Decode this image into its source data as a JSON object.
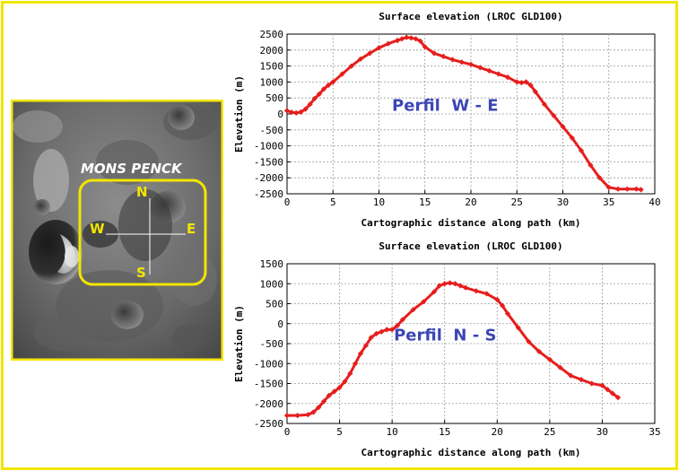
{
  "photo": {
    "feature_name": "MONS PENCK",
    "compass": {
      "north": "N",
      "south": "S",
      "west": "W",
      "east": "E"
    },
    "highlight_color": "#f2e600"
  },
  "colors": {
    "frame": "#f2e600",
    "series": "#e61e1e",
    "annotation": "#3c46b4"
  },
  "chart_data": [
    {
      "type": "line",
      "title": "Surface elevation (LROC GLD100)",
      "xlabel": "Cartographic distance along path (km)",
      "ylabel": "Elevation (m)",
      "annotation": "Perfil  W - E",
      "xlim": [
        0,
        40
      ],
      "ylim": [
        -2500,
        2500
      ],
      "xticks": [
        0,
        5,
        10,
        15,
        20,
        25,
        30,
        35,
        40
      ],
      "yticks": [
        2500,
        2000,
        1500,
        1000,
        500,
        0,
        -500,
        -1000,
        -1500,
        -2000,
        -2500
      ],
      "grid": true,
      "x": [
        0,
        0.5,
        1,
        1.5,
        2,
        2.5,
        3,
        3.5,
        4,
        4.5,
        5,
        6,
        7,
        8,
        9,
        10,
        11,
        12,
        12.5,
        13,
        13.5,
        14,
        14.5,
        15,
        16,
        17,
        18,
        19,
        20,
        21,
        22,
        23,
        24,
        25,
        25.5,
        26,
        26.5,
        27,
        28,
        29,
        30,
        31,
        32,
        33,
        34,
        35,
        36,
        37,
        38,
        38.5
      ],
      "values": [
        100,
        50,
        30,
        60,
        150,
        300,
        480,
        620,
        780,
        900,
        1000,
        1250,
        1500,
        1720,
        1900,
        2070,
        2200,
        2300,
        2350,
        2400,
        2380,
        2350,
        2280,
        2100,
        1900,
        1800,
        1700,
        1620,
        1550,
        1450,
        1350,
        1250,
        1150,
        1000,
        980,
        1000,
        900,
        700,
        300,
        -50,
        -400,
        -750,
        -1150,
        -1600,
        -2000,
        -2300,
        -2350,
        -2350,
        -2350,
        -2370
      ]
    },
    {
      "type": "line",
      "title": "Surface elevation (LROC GLD100)",
      "xlabel": "Cartographic distance along path (km)",
      "ylabel": "Elevation (m)",
      "annotation": "Perfil  N - S",
      "xlim": [
        0,
        35
      ],
      "ylim": [
        -2500,
        1500
      ],
      "xticks": [
        0,
        5,
        10,
        15,
        20,
        25,
        30,
        35
      ],
      "yticks": [
        1500,
        1000,
        500,
        0,
        -500,
        -1000,
        -1500,
        -2000,
        -2500
      ],
      "grid": true,
      "x": [
        0,
        1,
        2,
        2.5,
        3,
        3.5,
        4,
        4.5,
        5,
        5.5,
        6,
        6.5,
        7,
        7.5,
        8,
        8.5,
        9,
        9.5,
        10,
        10.5,
        11,
        12,
        13,
        14,
        14.5,
        15,
        15.5,
        16,
        16.5,
        17,
        18,
        19,
        20,
        20.5,
        21,
        22,
        23,
        24,
        25,
        26,
        27,
        28,
        29,
        30,
        30.5,
        31,
        31.5
      ],
      "values": [
        -2300,
        -2300,
        -2280,
        -2220,
        -2100,
        -1950,
        -1800,
        -1700,
        -1600,
        -1450,
        -1250,
        -1000,
        -750,
        -550,
        -350,
        -250,
        -200,
        -150,
        -150,
        -50,
        100,
        350,
        550,
        800,
        950,
        1000,
        1020,
        1000,
        950,
        900,
        820,
        750,
        600,
        450,
        250,
        -100,
        -450,
        -700,
        -900,
        -1100,
        -1300,
        -1400,
        -1500,
        -1550,
        -1650,
        -1750,
        -1850
      ]
    }
  ]
}
